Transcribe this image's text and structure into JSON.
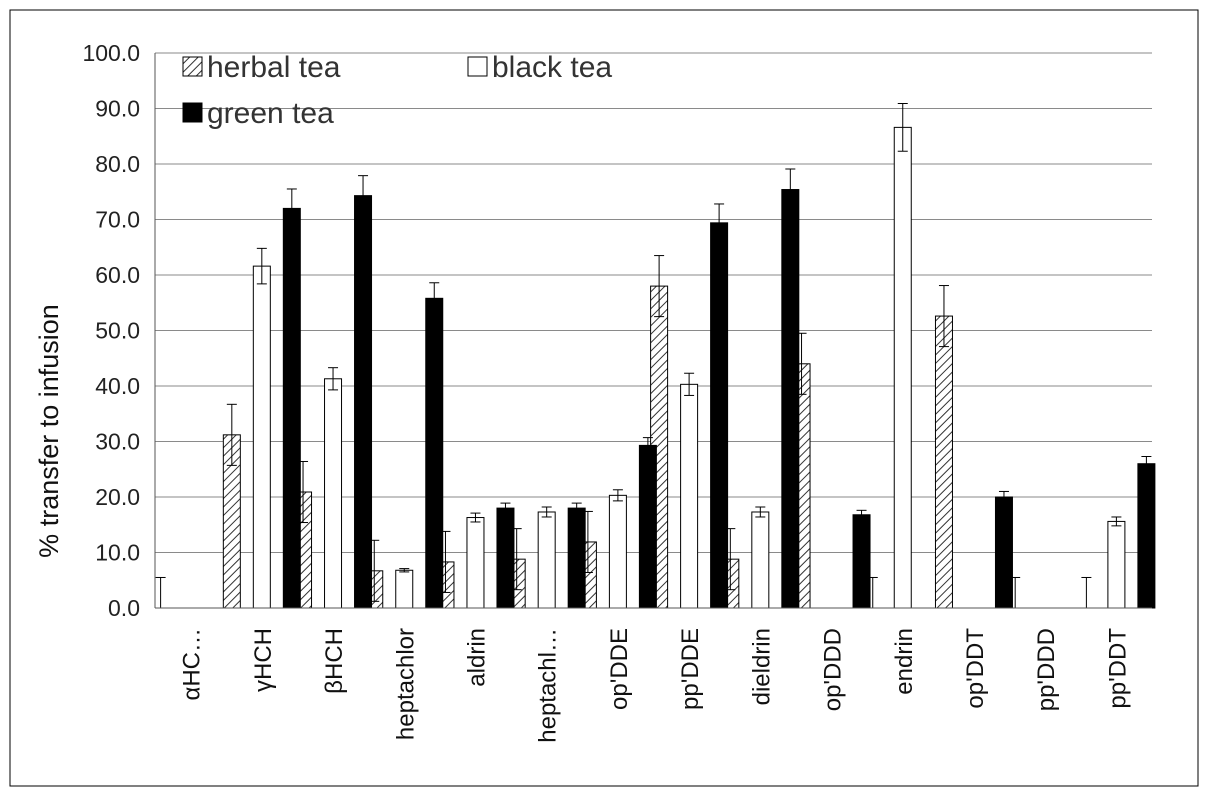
{
  "chart_data": {
    "type": "bar",
    "title": "",
    "xlabel": "",
    "ylabel": "% transfer to infusion",
    "ylim": [
      0,
      100
    ],
    "yticks": [
      "0.0",
      "10.0",
      "20.0",
      "30.0",
      "40.0",
      "50.0",
      "60.0",
      "70.0",
      "80.0",
      "90.0",
      "100.0"
    ],
    "grid": true,
    "legend_position": "top-left",
    "categories": [
      "αHC…",
      "γHCH",
      "βHCH",
      "heptachlor",
      "aldrin",
      "heptachl…",
      "op'DDE",
      "pp'DDE",
      "dieldrin",
      "op'DDD",
      "endrin",
      "op'DDT",
      "pp'DDD",
      "pp'DDT"
    ],
    "series": [
      {
        "name": "herbal tea",
        "pattern": "hatched",
        "color": "#555555",
        "values": [
          0,
          31.2,
          20.9,
          6.7,
          8.3,
          8.8,
          11.9,
          58.0,
          8.8,
          44.0,
          0,
          52.6,
          0,
          0
        ],
        "errors": [
          5.5,
          5.5,
          5.5,
          5.5,
          5.5,
          5.5,
          5.5,
          5.5,
          5.5,
          5.5,
          5.5,
          5.5,
          5.5,
          5.5
        ]
      },
      {
        "name": "black tea",
        "pattern": "open",
        "color": "#ffffff",
        "values": [
          0,
          61.6,
          41.3,
          6.8,
          16.3,
          17.3,
          20.3,
          40.3,
          17.3,
          0,
          86.6,
          0,
          0,
          15.6
        ],
        "errors": [
          0,
          3.2,
          2.0,
          0.3,
          0.8,
          0.9,
          1.0,
          2.0,
          0.9,
          0,
          4.3,
          0,
          0,
          0.8
        ]
      },
      {
        "name": "green tea",
        "pattern": "solid",
        "color": "#000000",
        "values": [
          0,
          72.0,
          74.3,
          55.8,
          18.0,
          18.0,
          29.3,
          69.4,
          75.4,
          16.8,
          0,
          20.0,
          0,
          26.0
        ],
        "errors": [
          0,
          3.5,
          3.6,
          2.8,
          0.9,
          0.9,
          1.4,
          3.4,
          3.7,
          0.8,
          0,
          1.0,
          0,
          1.3
        ]
      }
    ]
  }
}
